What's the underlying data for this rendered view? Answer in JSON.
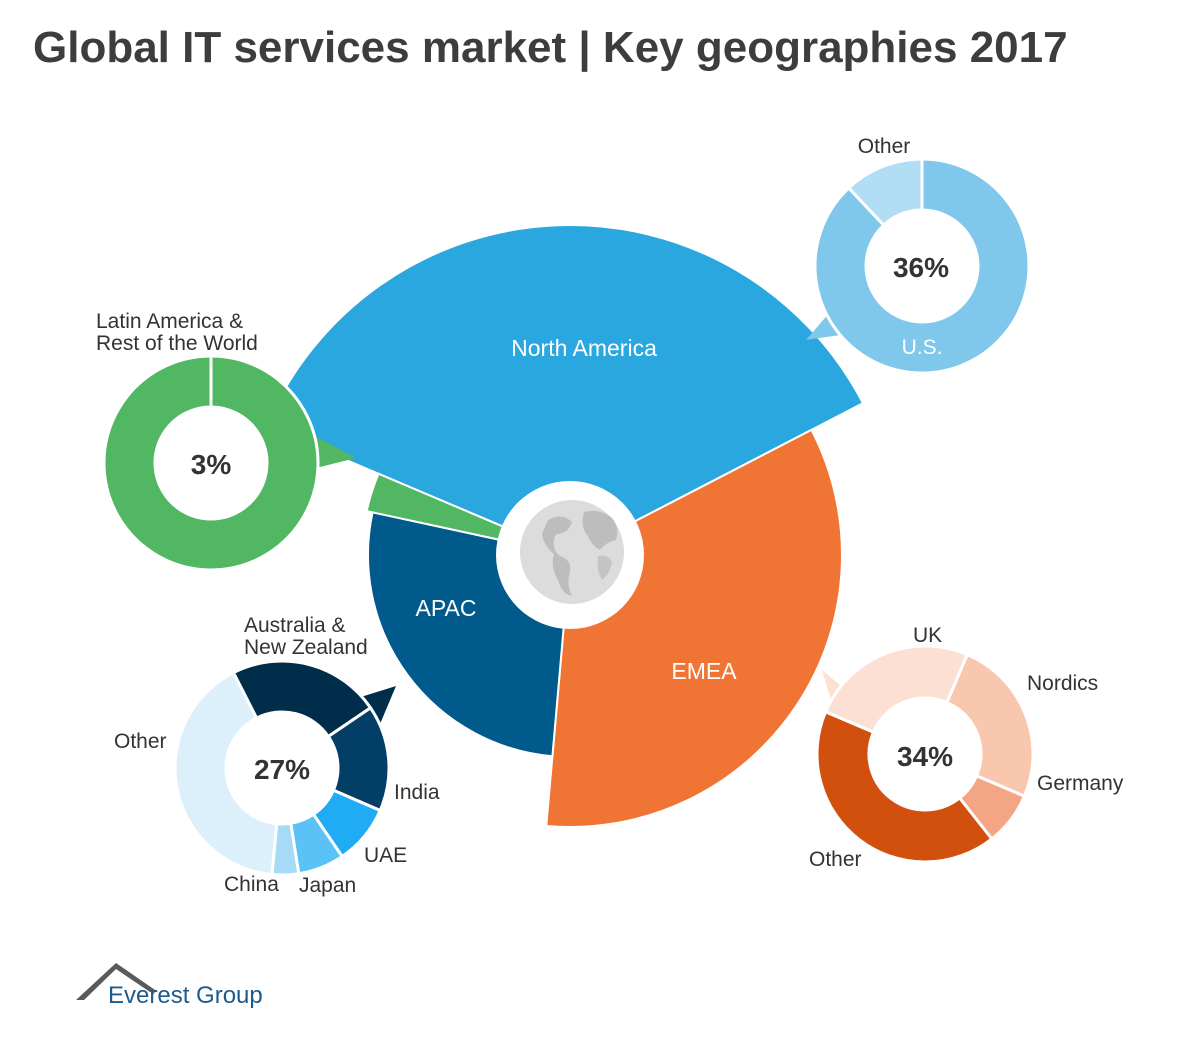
{
  "chart_data": {
    "type": "pie",
    "title": "Global IT services market | Key geographies 2017",
    "main": {
      "segments": [
        {
          "name": "North America",
          "value": 36,
          "color": "#29a7de"
        },
        {
          "name": "EMEA",
          "value": 34,
          "color": "#f07535"
        },
        {
          "name": "APAC",
          "value": 27,
          "color": "#005a8c"
        },
        {
          "name": "Latin America & Rest of the World",
          "value": 3,
          "color": "#52b763"
        }
      ]
    },
    "breakdowns": [
      {
        "region": "North America",
        "total_label": "36%",
        "items": [
          {
            "name": "U.S.",
            "share": 88,
            "color": "#7fc7eb",
            "label": "U.S."
          },
          {
            "name": "Other",
            "share": 12,
            "color": "#b2def5",
            "label": "Other"
          }
        ]
      },
      {
        "region": "Latin America & Rest of the World",
        "total_label": "3%",
        "label_lines": [
          "Latin America &",
          "Rest of the World"
        ],
        "items": [
          {
            "name": "Latin America & Rest of the World",
            "share": 100,
            "color": "#52b763"
          }
        ]
      },
      {
        "region": "APAC",
        "total_label": "27%",
        "items": [
          {
            "name": "Australia & New Zealand",
            "share": 23,
            "color": "#002d4a",
            "label_lines": [
              "Australia &",
              "New Zealand"
            ]
          },
          {
            "name": "India",
            "share": 16,
            "color": "#033e66",
            "label": "India"
          },
          {
            "name": "UAE",
            "share": 9,
            "color": "#20acf5",
            "label": "UAE"
          },
          {
            "name": "Japan",
            "share": 7,
            "color": "#5bc2f7",
            "label": "Japan"
          },
          {
            "name": "China",
            "share": 4,
            "color": "#a6dbf7",
            "label": "China"
          },
          {
            "name": "Other",
            "share": 41,
            "color": "#dcf0fc",
            "label": "Other"
          }
        ]
      },
      {
        "region": "EMEA",
        "total_label": "34%",
        "items": [
          {
            "name": "Nordics",
            "share": 25,
            "color": "#f9c6ae",
            "label": "Nordics"
          },
          {
            "name": "Germany",
            "share": 8,
            "color": "#f4a583",
            "label": "Germany"
          },
          {
            "name": "Other",
            "share": 42,
            "color": "#d1500e",
            "label": "Other"
          },
          {
            "name": "UK",
            "share": 25,
            "color": "#fce0d3",
            "label": "UK"
          }
        ]
      }
    ]
  },
  "brand": {
    "name": "Everest Group"
  }
}
